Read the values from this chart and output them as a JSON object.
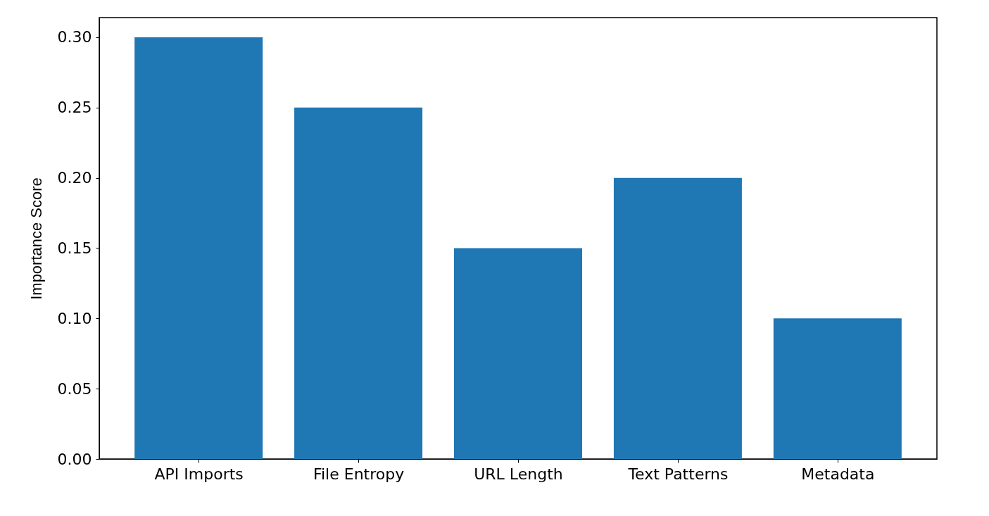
{
  "chart_data": {
    "type": "bar",
    "ylabel": "Importance Score",
    "categories": [
      "API Imports",
      "File Entropy",
      "URL Length",
      "Text Patterns",
      "Metadata"
    ],
    "values": [
      0.3,
      0.25,
      0.15,
      0.2,
      0.1
    ],
    "color": "#1f77b4",
    "ylim": [
      0,
      0.314
    ],
    "yticks": [
      {
        "value": 0,
        "label": "0.00"
      },
      0.05,
      {
        "value": 0.1,
        "label": "0.10"
      },
      0.15,
      {
        "value": 0.2,
        "label": "0.20"
      },
      0.25,
      {
        "value": 0.3,
        "label": "0.30"
      }
    ],
    "grid": false
  }
}
